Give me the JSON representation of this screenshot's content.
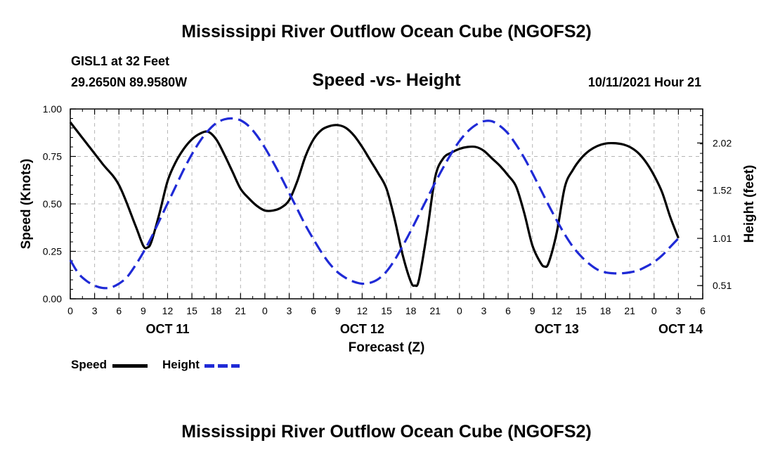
{
  "page": {
    "title": "Mississippi River Outflow Ocean Cube (NGOFS2)",
    "footer_title": "Mississippi River Outflow Ocean Cube (NGOFS2)",
    "station": "GISL1 at 32 Feet",
    "coordinates": "29.2650N  89.9580W",
    "timestamp": "10/11/2021 Hour 21"
  },
  "legend": {
    "speed_label": "Speed",
    "height_label": "Height"
  },
  "chart_data": {
    "type": "line",
    "title": "Speed -vs- Height",
    "xlabel": "Forecast (Z)",
    "ylabel": "Speed (Knots)",
    "y2label": "Height (feet)",
    "xlim": [
      0,
      78
    ],
    "ylim": [
      0,
      1.0
    ],
    "y2lim": [
      0.37,
      2.38
    ],
    "x_ticks": [
      0,
      3,
      6,
      9,
      12,
      15,
      18,
      21,
      24,
      27,
      30,
      33,
      36,
      39,
      42,
      45,
      48,
      51,
      54,
      57,
      60,
      63,
      66,
      69,
      72,
      75,
      78
    ],
    "x_tick_labels": [
      "0",
      "3",
      "6",
      "9",
      "12",
      "15",
      "18",
      "21",
      "0",
      "3",
      "6",
      "9",
      "12",
      "15",
      "18",
      "21",
      "0",
      "3",
      "6",
      "9",
      "12",
      "15",
      "18",
      "21",
      "0",
      "3",
      "6"
    ],
    "date_labels": [
      {
        "x": 12,
        "label": "OCT 11"
      },
      {
        "x": 36,
        "label": "OCT 12"
      },
      {
        "x": 60,
        "label": "OCT 13"
      },
      {
        "x": 78,
        "label": "OCT 14"
      }
    ],
    "y_ticks": [
      0,
      0.25,
      0.5,
      0.75,
      1.0
    ],
    "y_tick_labels": [
      "0.00",
      "0.25",
      "0.50",
      "0.75",
      "1.00"
    ],
    "y2_ticks": [
      0.51,
      1.01,
      1.52,
      2.02
    ],
    "y2_tick_labels": [
      "0.51",
      "1.01",
      "1.52",
      "2.02"
    ],
    "series": [
      {
        "name": "Speed",
        "axis": "left",
        "color": "#000000",
        "dash": false,
        "points": [
          [
            0,
            0.93
          ],
          [
            2,
            0.82
          ],
          [
            4,
            0.71
          ],
          [
            6,
            0.6
          ],
          [
            8,
            0.39
          ],
          [
            9,
            0.28
          ],
          [
            9.5,
            0.27
          ],
          [
            10,
            0.3
          ],
          [
            11,
            0.45
          ],
          [
            12,
            0.62
          ],
          [
            13,
            0.72
          ],
          [
            14,
            0.79
          ],
          [
            15,
            0.84
          ],
          [
            16,
            0.87
          ],
          [
            17,
            0.88
          ],
          [
            18,
            0.84
          ],
          [
            19,
            0.76
          ],
          [
            20,
            0.67
          ],
          [
            21,
            0.58
          ],
          [
            22,
            0.53
          ],
          [
            23,
            0.49
          ],
          [
            24,
            0.465
          ],
          [
            25,
            0.465
          ],
          [
            26,
            0.48
          ],
          [
            27,
            0.52
          ],
          [
            28,
            0.62
          ],
          [
            29,
            0.75
          ],
          [
            30,
            0.84
          ],
          [
            31,
            0.89
          ],
          [
            32,
            0.91
          ],
          [
            33,
            0.915
          ],
          [
            34,
            0.9
          ],
          [
            35,
            0.86
          ],
          [
            36,
            0.8
          ],
          [
            37,
            0.73
          ],
          [
            38,
            0.66
          ],
          [
            39,
            0.58
          ],
          [
            40,
            0.42
          ],
          [
            41,
            0.23
          ],
          [
            42,
            0.09
          ],
          [
            42.5,
            0.07
          ],
          [
            43,
            0.1
          ],
          [
            44,
            0.35
          ],
          [
            45,
            0.64
          ],
          [
            46,
            0.74
          ],
          [
            47,
            0.77
          ],
          [
            48,
            0.79
          ],
          [
            49,
            0.8
          ],
          [
            50,
            0.8
          ],
          [
            51,
            0.78
          ],
          [
            52,
            0.74
          ],
          [
            53,
            0.7
          ],
          [
            54,
            0.65
          ],
          [
            55,
            0.59
          ],
          [
            56,
            0.45
          ],
          [
            57,
            0.28
          ],
          [
            58,
            0.19
          ],
          [
            58.5,
            0.17
          ],
          [
            59,
            0.19
          ],
          [
            60,
            0.35
          ],
          [
            61,
            0.59
          ],
          [
            62,
            0.68
          ],
          [
            63,
            0.74
          ],
          [
            64,
            0.78
          ],
          [
            65,
            0.805
          ],
          [
            66,
            0.818
          ],
          [
            67,
            0.82
          ],
          [
            68,
            0.815
          ],
          [
            69,
            0.8
          ],
          [
            70,
            0.77
          ],
          [
            71,
            0.72
          ],
          [
            72,
            0.65
          ],
          [
            73,
            0.56
          ],
          [
            74,
            0.43
          ],
          [
            75,
            0.32
          ]
        ]
      },
      {
        "name": "Height",
        "axis": "right",
        "color": "#1f2ad6",
        "dash": true,
        "points": [
          [
            0,
            0.78
          ],
          [
            1,
            0.64
          ],
          [
            2,
            0.56
          ],
          [
            3,
            0.51
          ],
          [
            4,
            0.485
          ],
          [
            5,
            0.49
          ],
          [
            6,
            0.53
          ],
          [
            7,
            0.6
          ],
          [
            8,
            0.72
          ],
          [
            9,
            0.86
          ],
          [
            10,
            1.02
          ],
          [
            11,
            1.2
          ],
          [
            12,
            1.38
          ],
          [
            13,
            1.56
          ],
          [
            14,
            1.74
          ],
          [
            15,
            1.9
          ],
          [
            16,
            2.04
          ],
          [
            17,
            2.15
          ],
          [
            18,
            2.23
          ],
          [
            19,
            2.27
          ],
          [
            20,
            2.28
          ],
          [
            21,
            2.26
          ],
          [
            22,
            2.2
          ],
          [
            23,
            2.1
          ],
          [
            24,
            1.97
          ],
          [
            25,
            1.82
          ],
          [
            26,
            1.66
          ],
          [
            27,
            1.49
          ],
          [
            28,
            1.32
          ],
          [
            29,
            1.15
          ],
          [
            30,
            1.0
          ],
          [
            31,
            0.86
          ],
          [
            32,
            0.74
          ],
          [
            33,
            0.65
          ],
          [
            34,
            0.59
          ],
          [
            35,
            0.55
          ],
          [
            36,
            0.53
          ],
          [
            37,
            0.54
          ],
          [
            38,
            0.58
          ],
          [
            39,
            0.66
          ],
          [
            40,
            0.78
          ],
          [
            41,
            0.93
          ],
          [
            42,
            1.09
          ],
          [
            43,
            1.26
          ],
          [
            44,
            1.43
          ],
          [
            45,
            1.6
          ],
          [
            46,
            1.76
          ],
          [
            47,
            1.91
          ],
          [
            48,
            2.04
          ],
          [
            49,
            2.14
          ],
          [
            50,
            2.21
          ],
          [
            51,
            2.25
          ],
          [
            52,
            2.25
          ],
          [
            53,
            2.2
          ],
          [
            54,
            2.12
          ],
          [
            55,
            2.0
          ],
          [
            56,
            1.86
          ],
          [
            57,
            1.7
          ],
          [
            58,
            1.53
          ],
          [
            59,
            1.36
          ],
          [
            60,
            1.2
          ],
          [
            61,
            1.05
          ],
          [
            62,
            0.92
          ],
          [
            63,
            0.82
          ],
          [
            64,
            0.74
          ],
          [
            65,
            0.68
          ],
          [
            66,
            0.65
          ],
          [
            67,
            0.64
          ],
          [
            68,
            0.64
          ],
          [
            69,
            0.65
          ],
          [
            70,
            0.67
          ],
          [
            71,
            0.71
          ],
          [
            72,
            0.76
          ],
          [
            73,
            0.83
          ],
          [
            74,
            0.92
          ],
          [
            75,
            1.01
          ]
        ]
      }
    ]
  }
}
